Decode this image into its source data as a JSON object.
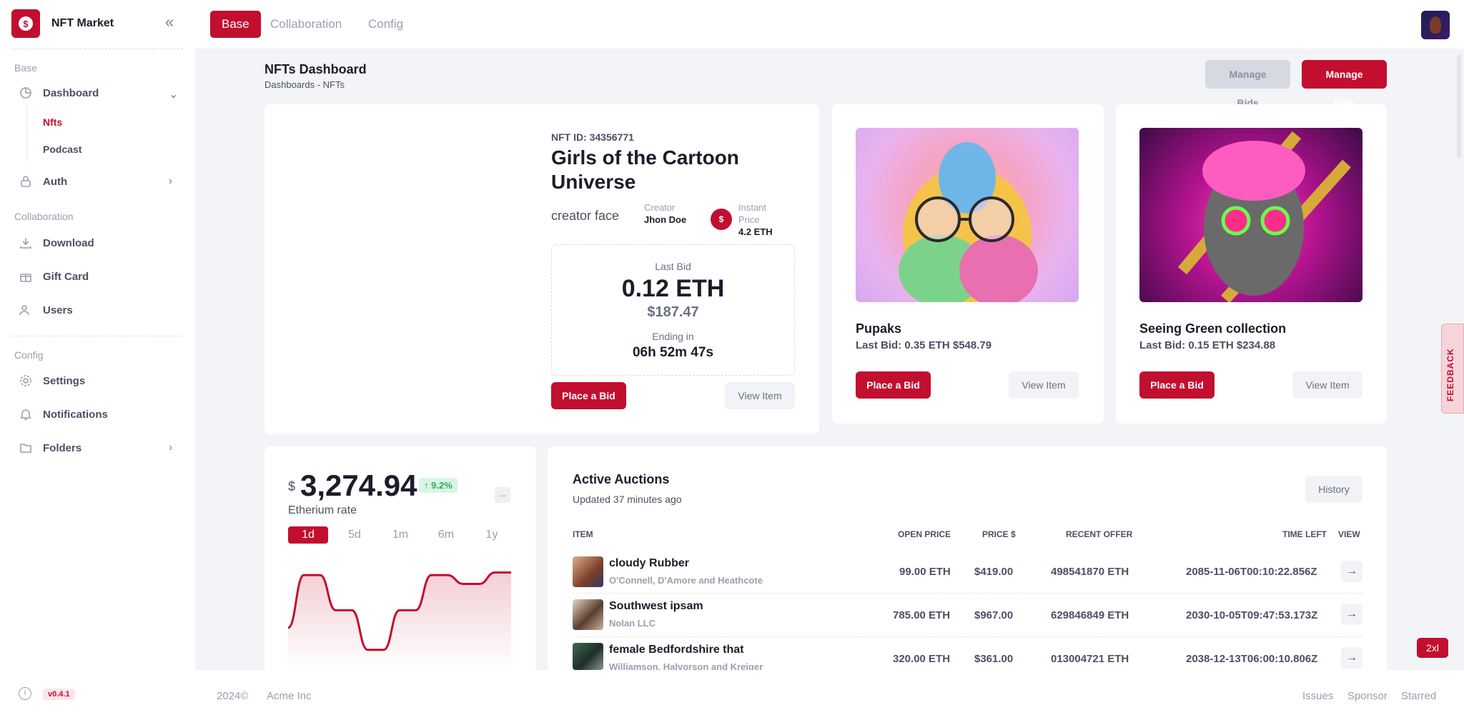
{
  "app": {
    "name": "NFT Market",
    "version": "v0.4.1"
  },
  "sidebar": {
    "sections": [
      {
        "label": "Base"
      },
      {
        "label": "Collaboration"
      },
      {
        "label": "Config"
      }
    ],
    "dashboard": {
      "label": "Dashboard",
      "icon": "pie-chart-icon",
      "children": [
        "Nfts",
        "Podcast"
      ],
      "active_child": "Nfts"
    },
    "auth": {
      "label": "Auth",
      "icon": "lock-icon"
    },
    "download": {
      "label": "Download",
      "icon": "download-icon"
    },
    "gift_card": {
      "label": "Gift Card",
      "icon": "gift-icon"
    },
    "users": {
      "label": "Users",
      "icon": "users-icon"
    },
    "settings": {
      "label": "Settings",
      "icon": "gear-icon"
    },
    "notifications": {
      "label": "Notifications",
      "icon": "bell-icon"
    },
    "folders": {
      "label": "Folders",
      "icon": "folder-icon"
    }
  },
  "topbar": {
    "tabs": [
      "Base",
      "Collaboration",
      "Config"
    ],
    "active_tab": "Base"
  },
  "header": {
    "title": "NFTs Dashboard",
    "breadcrumb": "Dashboards  - NFTs",
    "btn_manage_1": "Manage Bids",
    "btn_manage_2": "Manage Bids"
  },
  "featured": {
    "nft_id": "NFT ID: 34356771",
    "title": "Girls of the Cartoon Universe",
    "creator_alt": "creator face",
    "creator_label": "Creator",
    "creator_name": "Jhon Doe",
    "instant_label": "Instant Price",
    "instant_price": "4.2 ETH",
    "coin_symbol": "$",
    "last_bid_label": "Last Bid",
    "last_bid_eth": "0.12 ETH",
    "last_bid_usd": "$187.47",
    "ending_label": "Ending in",
    "ending_time": "06h 52m 47s",
    "place_bid": "Place a Bid",
    "view_item": "View Item"
  },
  "nft_cards": [
    {
      "name": "Pupaks",
      "last_bid": "Last Bid: 0.35 ETH $548.79",
      "place_bid": "Place a Bid",
      "view_item": "View Item"
    },
    {
      "name": "Seeing Green collection",
      "last_bid": "Last Bid: 0.15 ETH $234.88",
      "place_bid": "Place a Bid",
      "view_item": "View Item"
    }
  ],
  "rate": {
    "currency": "$",
    "value": "3,274.94",
    "change": "9.2%",
    "label": "Etherium rate",
    "more": "...",
    "periods": [
      "1d",
      "5d",
      "1m",
      "6m",
      "1y"
    ],
    "active_period": "1d"
  },
  "chart_data": {
    "type": "area",
    "series_values": [
      0.35,
      0.95,
      0.95,
      0.55,
      0.55,
      0.1,
      0.1,
      0.55,
      0.55,
      0.95,
      0.95,
      0.85,
      0.85,
      0.98,
      0.98
    ],
    "ylim": [
      0,
      1
    ],
    "grid": false,
    "color": "#c20e2f"
  },
  "auctions": {
    "title": "Active Auctions",
    "updated": "Updated 37 minutes ago",
    "history_btn": "History",
    "columns": [
      "ITEM",
      "OPEN PRICE",
      "PRICE $",
      "RECENT OFFER",
      "TIME LEFT",
      "VIEW"
    ],
    "rows": [
      {
        "name": "cloudy Rubber",
        "company": "O'Connell, D'Amore and Heathcote",
        "open_price": "99.00 ETH",
        "price": "$419.00",
        "offer": "498541870 ETH",
        "time_left": "2085-11-06T00:10:22.856Z"
      },
      {
        "name": "Southwest ipsam",
        "company": "Nolan LLC",
        "open_price": "785.00 ETH",
        "price": "$967.00",
        "offer": "629846849 ETH",
        "time_left": "2030-10-05T09:47:53.173Z"
      },
      {
        "name": "female Bedfordshire that",
        "company": "Williamson, Halvorson and Kreiger",
        "open_price": "320.00 ETH",
        "price": "$361.00",
        "offer": "013004721 ETH",
        "time_left": "2038-12-13T06:00:10.806Z"
      }
    ]
  },
  "footer": {
    "copyright": "2024©",
    "company": "Acme Inc",
    "links": [
      "Issues",
      "Sponsor",
      "Starred"
    ]
  },
  "misc": {
    "feedback": "FEEDBACK",
    "breakpoint": "2xl"
  }
}
